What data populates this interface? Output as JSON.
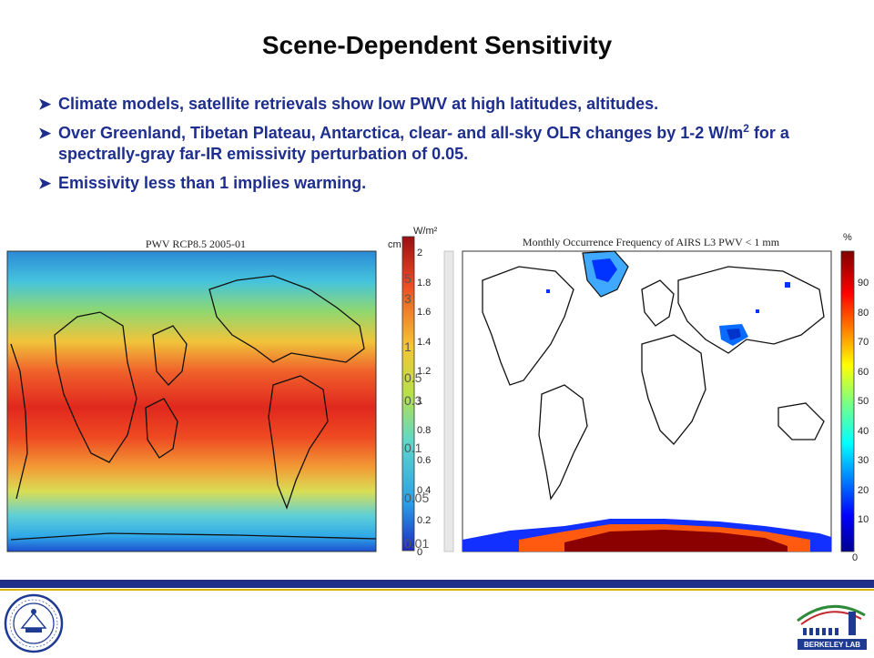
{
  "slide": {
    "title": "Scene-Dependent Sensitivity",
    "bullets": [
      {
        "text": "Climate models, satellite retrievals show low PWV at high latitudes, altitudes."
      },
      {
        "text_before": "Over Greenland, Tibetan Plateau, Antarctica, clear- and all-sky OLR changes by 1-2 W/m",
        "sup": "2",
        "text_after": " for a spectrally-gray far-IR emissivity perturbation of 0.05."
      },
      {
        "text": "Emissivity less than 1 implies warming."
      }
    ],
    "bullet_icon": "arrow-bullet-icon"
  },
  "left_map": {
    "title": "PWV RCP8.5 2005-01",
    "unit_cm": "cm",
    "unit_wm2": "W/m²",
    "colorbar_ticks": [
      "2",
      "1.8",
      "1.6",
      "1.4",
      "1.2",
      "1",
      "0.8",
      "0.6",
      "0.4",
      "0.2",
      "0"
    ],
    "overlay_ticks": [
      "5",
      "3",
      "1",
      "0.5",
      "0.3",
      "0.1",
      "0.05",
      "0.01"
    ]
  },
  "right_map": {
    "title": "Monthly Occurrence Frequency of AIRS L3 PWV < 1 mm",
    "unit": "%",
    "colorbar_ticks": [
      "90",
      "80",
      "70",
      "60",
      "50",
      "40",
      "30",
      "20",
      "10",
      "0"
    ]
  },
  "logos": {
    "left": "university-of-california-seal",
    "right": "berkeley-lab-logo",
    "right_text": "BERKELEY LAB"
  },
  "colors": {
    "title": "#0b0b0b",
    "bullet_text": "#1e2e8e",
    "footer_bar": "#1f2e86",
    "footer_accent": "#d9b300"
  }
}
